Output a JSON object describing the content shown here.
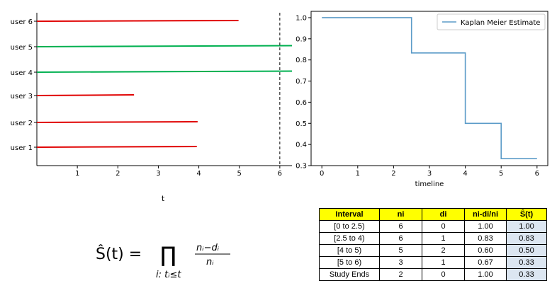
{
  "chart_data": [
    {
      "type": "line",
      "xlabel": "t",
      "xticks": [
        1,
        2,
        3,
        4,
        5,
        6
      ],
      "xlim": [
        0,
        6.3
      ],
      "categories": [
        "user 1",
        "user 2",
        "user 3",
        "user 4",
        "user 5",
        "user 6"
      ],
      "series": [
        {
          "values": [
            [
              0,
              3.95
            ]
          ],
          "color": "#e00000"
        },
        {
          "values": [
            [
              0,
              3.97
            ]
          ],
          "color": "#e00000"
        },
        {
          "values": [
            [
              0,
              2.4
            ]
          ],
          "color": "#e00000"
        },
        {
          "values": [
            [
              0,
              6.3
            ]
          ],
          "color": "#00b050"
        },
        {
          "values": [
            [
              0,
              6.3
            ]
          ],
          "color": "#00b050"
        },
        {
          "values": [
            [
              0,
              4.98
            ]
          ],
          "color": "#e00000"
        }
      ],
      "study_end": 6,
      "grid": false
    },
    {
      "type": "line",
      "xlabel": "timeline",
      "xticks": [
        0,
        1,
        2,
        3,
        4,
        5,
        6
      ],
      "yticks": [
        "0.3",
        "0.4",
        "0.5",
        "0.6",
        "0.7",
        "0.8",
        "0.9",
        "1.0"
      ],
      "xlim": [
        -0.3,
        6.3
      ],
      "ylim": [
        0.3,
        1.03
      ],
      "series": [
        {
          "name": "Kaplan Meier Estimate",
          "x": [
            0,
            2.5,
            4,
            5,
            6
          ],
          "y": [
            1.0,
            0.833,
            0.5,
            0.333,
            0.333
          ],
          "drawstyle": "steps-post",
          "color": "#5b9bc8"
        }
      ],
      "legend": "top-right",
      "grid": false
    }
  ],
  "formula": {
    "lhs": "Ŝ(t) =",
    "operator": "∏",
    "subscript": "i: tᵢ≤t",
    "numerator": "nᵢ−dᵢ",
    "denominator": "nᵢ"
  },
  "table": {
    "headers": [
      "Interval",
      "ni",
      "di",
      "ni-di/ni",
      "Ŝ(t)"
    ],
    "rows": [
      [
        "[0 to 2.5)",
        "6",
        "0",
        "1.00",
        "1.00"
      ],
      [
        "[2.5 to 4)",
        "6",
        "1",
        "0.83",
        "0.83"
      ],
      [
        "[4 to 5)",
        "5",
        "2",
        "0.60",
        "0.50"
      ],
      [
        "[5 to 6)",
        "3",
        "1",
        "0.67",
        "0.33"
      ],
      [
        "Study Ends",
        "2",
        "0",
        "1.00",
        "0.33"
      ]
    ]
  }
}
